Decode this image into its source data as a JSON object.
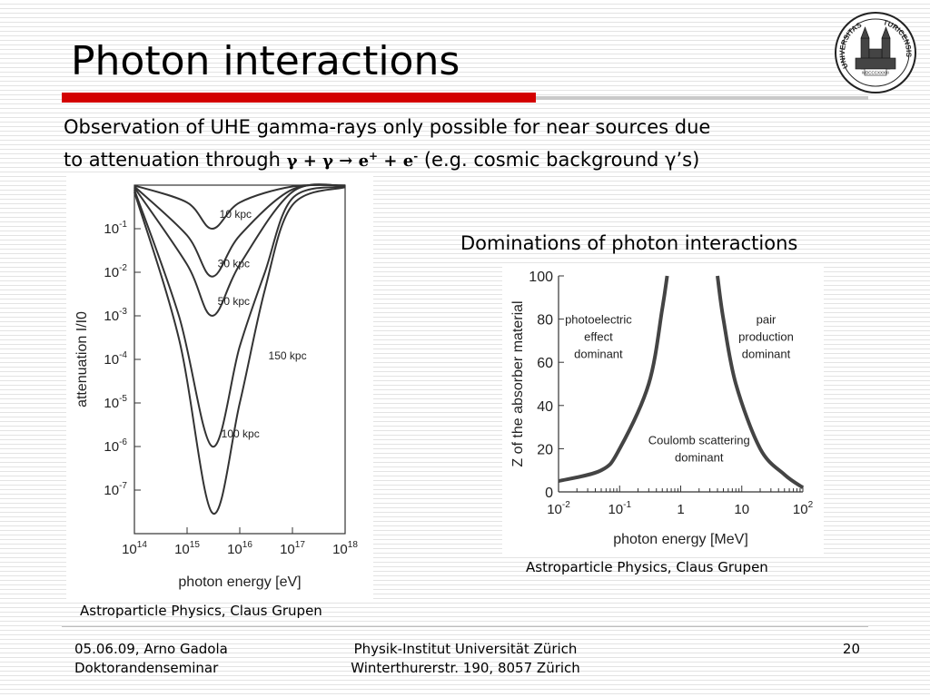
{
  "slide": {
    "title": "Photon interactions",
    "intro": {
      "line1": "Observation of UHE gamma-rays only possible for near sources due",
      "line2_prefix": "to attenuation through ",
      "equation_text": "γ + γ → e+ + e-",
      "line2_suffix": " (e.g. cosmic background γ’s)"
    },
    "subtitle": "Dominations of photon interactions",
    "caption_left": "Astroparticle Physics, Claus Grupen",
    "caption_right": "Astroparticle Physics, Claus Grupen"
  },
  "footer": {
    "left_line1": "05.06.09, Arno Gadola",
    "left_line2": "Doktorandenseminar",
    "mid_line1": "Physik-Institut Universität Zürich",
    "mid_line2": "Winterthurerstr. 190, 8057 Zürich",
    "page": "20"
  },
  "logo": {
    "icon": "university-seal-icon",
    "text_left": "UNIVERSITAS",
    "text_right": "TURICENSIS",
    "text_bottom": "MDCCCXXXIII"
  },
  "chart_data": [
    {
      "type": "line",
      "title": "",
      "xlabel": "photon energy [eV]",
      "ylabel": "attenuation I/I0",
      "x_scale": "log",
      "y_scale": "log",
      "xlim": [
        100000000000000.0,
        1e+18
      ],
      "ylim": [
        1e-08,
        1
      ],
      "x_tick_labels": [
        "10^14",
        "10^15",
        "10^16",
        "10^17",
        "10^18"
      ],
      "y_tick_labels": [
        "10^-1",
        "10^-2",
        "10^-3",
        "10^-4",
        "10^-5",
        "10^-6",
        "10^-7"
      ],
      "series": [
        {
          "name": "10 kpc",
          "points": [
            [
              100000000000000.0,
              0.98
            ],
            [
              1000000000000000.0,
              0.4
            ],
            [
              3000000000000000.0,
              0.1
            ],
            [
              1e+16,
              0.4
            ],
            [
              1e+17,
              0.93
            ],
            [
              1e+18,
              0.99
            ]
          ]
        },
        {
          "name": "30 kpc",
          "points": [
            [
              100000000000000.0,
              0.93
            ],
            [
              1000000000000000.0,
              0.07
            ],
            [
              3000000000000000.0,
              0.008
            ],
            [
              1e+16,
              0.07
            ],
            [
              1e+17,
              0.8
            ],
            [
              1e+18,
              0.97
            ]
          ]
        },
        {
          "name": "50 kpc",
          "points": [
            [
              100000000000000.0,
              0.88
            ],
            [
              1000000000000000.0,
              0.015
            ],
            [
              3000000000000000.0,
              0.001
            ],
            [
              1e+16,
              0.015
            ],
            [
              1e+17,
              0.7
            ],
            [
              1e+18,
              0.96
            ]
          ]
        },
        {
          "name": "100 kpc",
          "points": [
            [
              100000000000000.0,
              0.78
            ],
            [
              700000000000000.0,
              0.001
            ],
            [
              3000000000000000.0,
              1e-06
            ],
            [
              1e+16,
              0.0002
            ],
            [
              3e+16,
              0.01
            ],
            [
              1e+17,
              0.5
            ],
            [
              1e+18,
              0.93
            ]
          ]
        },
        {
          "name": "150 kpc",
          "points": [
            [
              100000000000000.0,
              0.7
            ],
            [
              700000000000000.0,
              0.0003
            ],
            [
              3000000000000000.0,
              3e-08
            ],
            [
              1e+16,
              1e-05
            ],
            [
              3e+16,
              0.004
            ],
            [
              1e+17,
              0.35
            ],
            [
              1e+18,
              0.9
            ]
          ]
        }
      ]
    },
    {
      "type": "line",
      "title": "",
      "xlabel": "photon energy [MeV]",
      "ylabel": "Z of the absorber material",
      "x_scale": "log",
      "xlim": [
        0.01,
        100
      ],
      "ylim": [
        0,
        100
      ],
      "x_tick_labels": [
        "10^-2",
        "10^-1",
        "1",
        "10",
        "10^2"
      ],
      "y_ticks": [
        0,
        20,
        40,
        60,
        80,
        100
      ],
      "region_labels": [
        {
          "lines": [
            "photoelectric",
            "effect",
            "dominant"
          ]
        },
        {
          "lines": [
            "pair",
            "production",
            "dominant"
          ]
        },
        {
          "lines": [
            "Coulomb scattering",
            "dominant"
          ]
        }
      ],
      "series": [
        {
          "points": [
            [
              0.01,
              5
            ],
            [
              0.05,
              10
            ],
            [
              0.1,
              20
            ],
            [
              0.3,
              50
            ],
            [
              0.5,
              85
            ],
            [
              0.6,
              100
            ]
          ]
        },
        {
          "points": [
            [
              4,
              100
            ],
            [
              5,
              80
            ],
            [
              8,
              50
            ],
            [
              20,
              20
            ],
            [
              50,
              8
            ],
            [
              100,
              2
            ]
          ]
        }
      ]
    }
  ]
}
